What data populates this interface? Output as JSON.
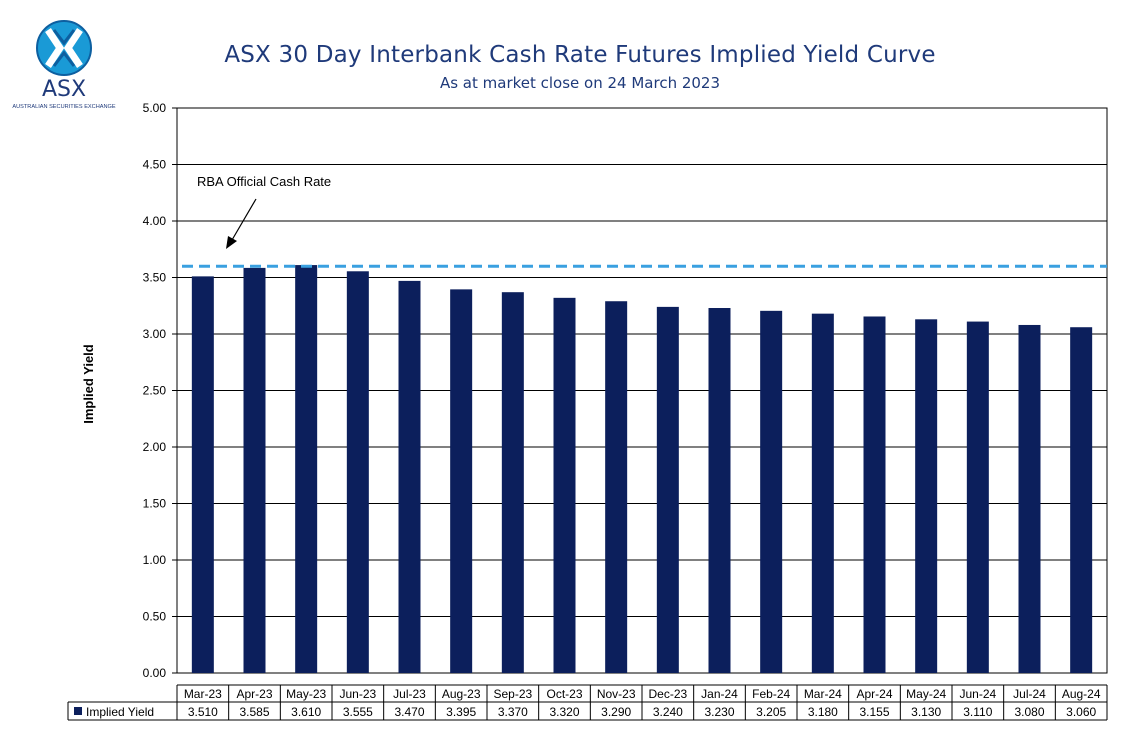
{
  "logo": {
    "wordmark": "ASX",
    "tagline": "AUSTRALIAN SECURITIES EXCHANGE"
  },
  "chart_data": {
    "type": "bar",
    "title": "ASX 30 Day Interbank Cash Rate Futures Implied Yield Curve",
    "subtitle": "As at market close on 24 March 2023",
    "ylabel": "Implied Yield",
    "ylim": [
      0,
      5
    ],
    "yticks": [
      "0.00",
      "0.50",
      "1.00",
      "1.50",
      "2.00",
      "2.50",
      "3.00",
      "3.50",
      "4.00",
      "4.50",
      "5.00"
    ],
    "grid": true,
    "categories": [
      "Mar-23",
      "Apr-23",
      "May-23",
      "Jun-23",
      "Jul-23",
      "Aug-23",
      "Sep-23",
      "Oct-23",
      "Nov-23",
      "Dec-23",
      "Jan-24",
      "Feb-24",
      "Mar-24",
      "Apr-24",
      "May-24",
      "Jun-24",
      "Jul-24",
      "Aug-24"
    ],
    "series": [
      {
        "name": "Implied Yield",
        "color": "#0c1f5c",
        "values": [
          3.51,
          3.585,
          3.61,
          3.555,
          3.47,
          3.395,
          3.37,
          3.32,
          3.29,
          3.24,
          3.23,
          3.205,
          3.18,
          3.155,
          3.13,
          3.11,
          3.08,
          3.06
        ],
        "labels": [
          "3.510",
          "3.585",
          "3.610",
          "3.555",
          "3.470",
          "3.395",
          "3.370",
          "3.320",
          "3.290",
          "3.240",
          "3.230",
          "3.205",
          "3.180",
          "3.155",
          "3.130",
          "3.110",
          "3.080",
          "3.060"
        ]
      }
    ],
    "reference_line": {
      "label": "RBA Official Cash Rate",
      "value": 3.6,
      "color": "#3aa0e0",
      "style": "dashed"
    },
    "data_table": true
  }
}
